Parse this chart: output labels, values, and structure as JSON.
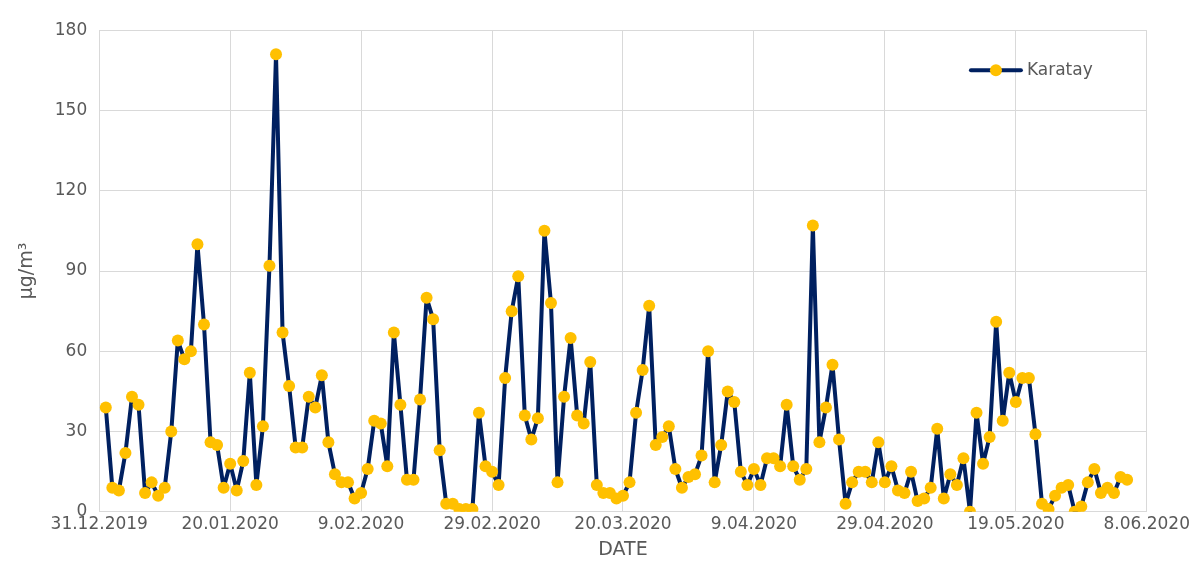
{
  "chart_data": {
    "type": "line",
    "xlabel": "DATE",
    "ylabel": "μg/m³",
    "legend": "top right",
    "grid": true,
    "marker": "circle",
    "line_style": "solid",
    "xlim": [
      "2019-12-31",
      "2020-06-08"
    ],
    "xticks": [
      {
        "value": "2019-12-31",
        "label": "31.12.2019"
      },
      {
        "value": "2020-01-20",
        "label": "20.01.2020"
      },
      {
        "value": "2020-02-09",
        "label": "9.02.2020"
      },
      {
        "value": "2020-02-29",
        "label": "29.02.2020"
      },
      {
        "value": "2020-03-20",
        "label": "20.03.2020"
      },
      {
        "value": "2020-04-09",
        "label": "9.04.2020"
      },
      {
        "value": "2020-04-29",
        "label": "29.04.2020"
      },
      {
        "value": "2020-05-19",
        "label": "19.05.2020"
      },
      {
        "value": "2020-06-08",
        "label": "8.06.2020"
      }
    ],
    "ylim": [
      0,
      180
    ],
    "yticks": [
      0,
      30,
      60,
      90,
      120,
      150,
      180
    ],
    "x": [
      "2020-01-01",
      "2020-01-02",
      "2020-01-03",
      "2020-01-04",
      "2020-01-05",
      "2020-01-06",
      "2020-01-07",
      "2020-01-08",
      "2020-01-09",
      "2020-01-10",
      "2020-01-11",
      "2020-01-12",
      "2020-01-13",
      "2020-01-14",
      "2020-01-15",
      "2020-01-16",
      "2020-01-17",
      "2020-01-18",
      "2020-01-19",
      "2020-01-20",
      "2020-01-21",
      "2020-01-22",
      "2020-01-23",
      "2020-01-24",
      "2020-01-25",
      "2020-01-26",
      "2020-01-27",
      "2020-01-28",
      "2020-01-29",
      "2020-01-30",
      "2020-01-31",
      "2020-02-01",
      "2020-02-02",
      "2020-02-03",
      "2020-02-04",
      "2020-02-05",
      "2020-02-06",
      "2020-02-07",
      "2020-02-08",
      "2020-02-09",
      "2020-02-10",
      "2020-02-11",
      "2020-02-12",
      "2020-02-13",
      "2020-02-14",
      "2020-02-15",
      "2020-02-16",
      "2020-02-17",
      "2020-02-18",
      "2020-02-19",
      "2020-02-20",
      "2020-02-21",
      "2020-02-22",
      "2020-02-23",
      "2020-02-24",
      "2020-02-25",
      "2020-02-26",
      "2020-02-27",
      "2020-02-28",
      "2020-02-29",
      "2020-03-01",
      "2020-03-02",
      "2020-03-03",
      "2020-03-04",
      "2020-03-05",
      "2020-03-06",
      "2020-03-07",
      "2020-03-08",
      "2020-03-09",
      "2020-03-10",
      "2020-03-11",
      "2020-03-12",
      "2020-03-13",
      "2020-03-14",
      "2020-03-15",
      "2020-03-16",
      "2020-03-17",
      "2020-03-18",
      "2020-03-19",
      "2020-03-20",
      "2020-03-21",
      "2020-03-22",
      "2020-03-23",
      "2020-03-24",
      "2020-03-25",
      "2020-03-26",
      "2020-03-27",
      "2020-03-28",
      "2020-03-29",
      "2020-03-30",
      "2020-03-31",
      "2020-04-01",
      "2020-04-02",
      "2020-04-03",
      "2020-04-04",
      "2020-04-05",
      "2020-04-06",
      "2020-04-07",
      "2020-04-08",
      "2020-04-09",
      "2020-04-10",
      "2020-04-11",
      "2020-04-12",
      "2020-04-13",
      "2020-04-14",
      "2020-04-15",
      "2020-04-16",
      "2020-04-17",
      "2020-04-18",
      "2020-04-19",
      "2020-04-20",
      "2020-04-21",
      "2020-04-22",
      "2020-04-23",
      "2020-04-24",
      "2020-04-25",
      "2020-04-26",
      "2020-04-27",
      "2020-04-28",
      "2020-04-29",
      "2020-04-30",
      "2020-05-01",
      "2020-05-02",
      "2020-05-03",
      "2020-05-04",
      "2020-05-05",
      "2020-05-06",
      "2020-05-07",
      "2020-05-08",
      "2020-05-09",
      "2020-05-10",
      "2020-05-11",
      "2020-05-12",
      "2020-05-13",
      "2020-05-14",
      "2020-05-15",
      "2020-05-16",
      "2020-05-17",
      "2020-05-18",
      "2020-05-19",
      "2020-05-20",
      "2020-05-21",
      "2020-05-22",
      "2020-05-23",
      "2020-05-24",
      "2020-05-25",
      "2020-05-26",
      "2020-05-27",
      "2020-05-28",
      "2020-05-29",
      "2020-05-30",
      "2020-05-31",
      "2020-06-01",
      "2020-06-02",
      "2020-06-03",
      "2020-06-04",
      "2020-06-05"
    ],
    "series": [
      {
        "name": "Karatay",
        "color": "#002060",
        "values": [
          39,
          9,
          8,
          22,
          43,
          40,
          7,
          11,
          6,
          9,
          30,
          64,
          57,
          60,
          100,
          70,
          26,
          25,
          9,
          18,
          8,
          19,
          52,
          10,
          32,
          92,
          171,
          67,
          47,
          24,
          24,
          43,
          39,
          51,
          26,
          14,
          11,
          11,
          5,
          7,
          16,
          34,
          33,
          17,
          67,
          40,
          12,
          12,
          42,
          80,
          72,
          23,
          3,
          3,
          1,
          1,
          1,
          37,
          17,
          15,
          10,
          50,
          75,
          88,
          36,
          27,
          35,
          105,
          78,
          11,
          43,
          65,
          36,
          33,
          56,
          10,
          7,
          7,
          5,
          6,
          11,
          37,
          53,
          77,
          25,
          28,
          32,
          16,
          9,
          13,
          14,
          21,
          60,
          11,
          25,
          45,
          41,
          15,
          10,
          16,
          10,
          20,
          20,
          17,
          40,
          17,
          12,
          16,
          107,
          26,
          39,
          55,
          27,
          3,
          11,
          15,
          15,
          11,
          26,
          11,
          17,
          8,
          7,
          15,
          4,
          5,
          9,
          31,
          5,
          14,
          10,
          20,
          0,
          37,
          18,
          28,
          71,
          34,
          52,
          41,
          50,
          50,
          29,
          3,
          1,
          6,
          9,
          10,
          0,
          2,
          11,
          16,
          7,
          9,
          7,
          13,
          12
        ]
      }
    ]
  }
}
